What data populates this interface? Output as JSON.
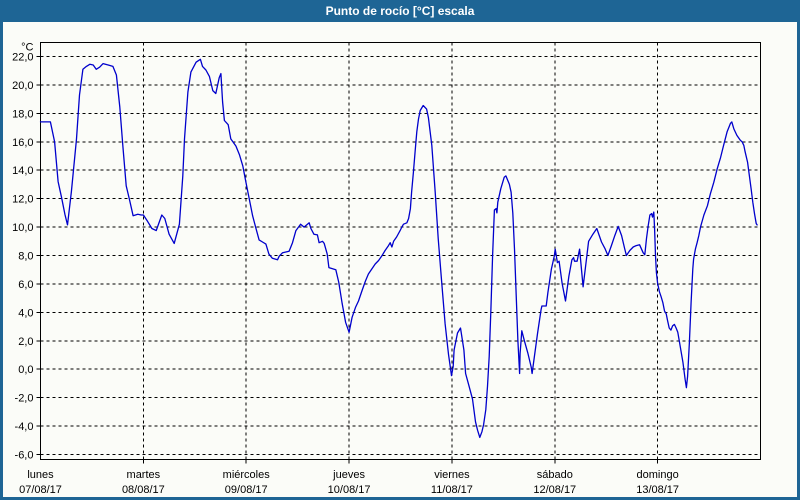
{
  "window": {
    "title": "Punto de rocío [°C] escala"
  },
  "colors": {
    "frame_blue": "#1e6595",
    "title_text": "#ffffff",
    "panel_bg": "#fbfcf8",
    "plot_bg": "#fbfcf8",
    "grid": "#000000",
    "axis_text": "#000000",
    "line": "#0000cc"
  },
  "chart_data": {
    "type": "line",
    "title": "Punto de rocío [°C] escala",
    "ylabel": "°C",
    "unit_label": "°C",
    "ylim": [
      -6,
      22
    ],
    "ytick_step": 2,
    "ytick_labels": [
      "22,0",
      "20,0",
      "18,0",
      "16,0",
      "14,0",
      "12,0",
      "10,0",
      "8,0",
      "6,0",
      "4,0",
      "2,0",
      "0,0",
      "-2,0",
      "-4,0",
      "-6,0"
    ],
    "grid": "dashed",
    "legend": "none",
    "x_mode": "hours_over_week",
    "hours_total": 168,
    "hours_per_day": 24,
    "days": [
      {
        "name": "lunes",
        "date": "07/08/17"
      },
      {
        "name": "martes",
        "date": "08/08/17"
      },
      {
        "name": "miércoles",
        "date": "09/08/17"
      },
      {
        "name": "jueves",
        "date": "10/08/17"
      },
      {
        "name": "viernes",
        "date": "11/08/17"
      },
      {
        "name": "sábado",
        "date": "12/08/17"
      },
      {
        "name": "domingo",
        "date": "13/08/17"
      }
    ],
    "series": [
      {
        "name": "Punto de rocío",
        "color": "#0000cc",
        "points": [
          [
            0,
            17.4
          ],
          [
            2.3,
            17.4
          ],
          [
            3.3,
            16.0
          ],
          [
            4.1,
            13.2
          ],
          [
            4.9,
            12.1
          ],
          [
            5.7,
            10.9
          ],
          [
            6.3,
            10.15
          ],
          [
            7.2,
            12.5
          ],
          [
            8.4,
            16.2
          ],
          [
            9.1,
            19.3
          ],
          [
            9.9,
            21.1
          ],
          [
            10.7,
            21.3
          ],
          [
            11.5,
            21.45
          ],
          [
            12.3,
            21.4
          ],
          [
            13.0,
            21.1
          ],
          [
            13.8,
            21.25
          ],
          [
            14.6,
            21.5
          ],
          [
            15.8,
            21.4
          ],
          [
            16.9,
            21.3
          ],
          [
            17.7,
            20.7
          ],
          [
            18.5,
            18.45
          ],
          [
            19.2,
            15.75
          ],
          [
            20.0,
            12.9
          ],
          [
            20.8,
            11.9
          ],
          [
            21.6,
            10.8
          ],
          [
            22.7,
            10.9
          ],
          [
            23.5,
            10.85
          ],
          [
            24.0,
            10.85
          ],
          [
            25.0,
            10.4
          ],
          [
            26.0,
            9.9
          ],
          [
            27.0,
            9.75
          ],
          [
            28.3,
            10.85
          ],
          [
            29.0,
            10.6
          ],
          [
            30.0,
            9.5
          ],
          [
            31.2,
            8.85
          ],
          [
            32.4,
            10.2
          ],
          [
            33.2,
            13.6
          ],
          [
            33.6,
            16.2
          ],
          [
            34.4,
            19.5
          ],
          [
            35.1,
            20.9
          ],
          [
            36.3,
            21.6
          ],
          [
            37.3,
            21.8
          ],
          [
            37.8,
            21.3
          ],
          [
            38.6,
            21.05
          ],
          [
            39.4,
            20.6
          ],
          [
            40.2,
            19.6
          ],
          [
            40.9,
            19.4
          ],
          [
            41.7,
            20.5
          ],
          [
            42.1,
            20.8
          ],
          [
            42.5,
            18.8
          ],
          [
            42.9,
            17.5
          ],
          [
            43.8,
            17.2
          ],
          [
            44.4,
            16.2
          ],
          [
            45.6,
            15.7
          ],
          [
            46.4,
            15.1
          ],
          [
            47.2,
            14.3
          ],
          [
            47.9,
            13.2
          ],
          [
            48.7,
            12.0
          ],
          [
            49.5,
            10.8
          ],
          [
            50.2,
            10.0
          ],
          [
            51.0,
            9.1
          ],
          [
            51.8,
            8.95
          ],
          [
            52.6,
            8.8
          ],
          [
            53.3,
            8.1
          ],
          [
            54.1,
            7.8
          ],
          [
            55.3,
            7.7
          ],
          [
            55.7,
            7.95
          ],
          [
            56.5,
            8.2
          ],
          [
            58.0,
            8.3
          ],
          [
            58.8,
            8.9
          ],
          [
            59.6,
            9.75
          ],
          [
            60.7,
            10.2
          ],
          [
            61.5,
            10.0
          ],
          [
            62.7,
            10.3
          ],
          [
            63.1,
            9.9
          ],
          [
            63.8,
            9.5
          ],
          [
            64.6,
            9.45
          ],
          [
            65.0,
            8.9
          ],
          [
            65.8,
            9.0
          ],
          [
            66.2,
            8.85
          ],
          [
            66.9,
            8.1
          ],
          [
            67.3,
            7.15
          ],
          [
            68.9,
            7.0
          ],
          [
            69.6,
            6.1
          ],
          [
            70.4,
            4.6
          ],
          [
            71.2,
            3.3
          ],
          [
            72.0,
            2.6
          ],
          [
            72.7,
            3.65
          ],
          [
            73.5,
            4.35
          ],
          [
            74.2,
            4.8
          ],
          [
            75.0,
            5.5
          ],
          [
            75.8,
            6.2
          ],
          [
            76.5,
            6.7
          ],
          [
            77.3,
            7.05
          ],
          [
            78.1,
            7.4
          ],
          [
            78.9,
            7.65
          ],
          [
            79.7,
            8.0
          ],
          [
            80.4,
            8.35
          ],
          [
            81.2,
            8.7
          ],
          [
            81.6,
            8.9
          ],
          [
            82.0,
            8.6
          ],
          [
            82.4,
            9.0
          ],
          [
            83.1,
            9.3
          ],
          [
            83.9,
            9.75
          ],
          [
            84.3,
            10.0
          ],
          [
            84.7,
            10.2
          ],
          [
            85.5,
            10.3
          ],
          [
            85.9,
            10.6
          ],
          [
            86.3,
            11.3
          ],
          [
            86.6,
            12.45
          ],
          [
            87.0,
            13.85
          ],
          [
            87.4,
            15.3
          ],
          [
            87.8,
            16.7
          ],
          [
            88.2,
            17.6
          ],
          [
            88.6,
            18.2
          ],
          [
            89.3,
            18.55
          ],
          [
            90.1,
            18.3
          ],
          [
            90.5,
            17.7
          ],
          [
            91.3,
            15.75
          ],
          [
            92.1,
            12.45
          ],
          [
            92.8,
            9.2
          ],
          [
            93.6,
            6.2
          ],
          [
            94.4,
            3.2
          ],
          [
            95.2,
            1.05
          ],
          [
            95.9,
            -0.45
          ],
          [
            96.3,
            0.2
          ],
          [
            96.5,
            1.35
          ],
          [
            97.3,
            2.55
          ],
          [
            98.0,
            2.9
          ],
          [
            98.8,
            1.35
          ],
          [
            99.2,
            -0.3
          ],
          [
            100.0,
            -1.2
          ],
          [
            100.8,
            -2.1
          ],
          [
            101.5,
            -3.7
          ],
          [
            102.0,
            -4.3
          ],
          [
            102.5,
            -4.8
          ],
          [
            103.0,
            -4.4
          ],
          [
            103.4,
            -3.9
          ],
          [
            103.9,
            -2.85
          ],
          [
            104.3,
            -1.2
          ],
          [
            104.7,
            0.9
          ],
          [
            105.1,
            4.2
          ],
          [
            105.5,
            8.0
          ],
          [
            105.9,
            11.2
          ],
          [
            106.3,
            11.3
          ],
          [
            106.5,
            11.0
          ],
          [
            106.7,
            11.75
          ],
          [
            107.4,
            12.7
          ],
          [
            108.2,
            13.5
          ],
          [
            108.6,
            13.6
          ],
          [
            109.4,
            13.0
          ],
          [
            109.8,
            12.45
          ],
          [
            110.2,
            11.0
          ],
          [
            110.6,
            8.45
          ],
          [
            111.0,
            5.2
          ],
          [
            111.4,
            2.0
          ],
          [
            111.8,
            -0.3
          ],
          [
            111.9,
            1.1
          ],
          [
            112.3,
            2.7
          ],
          [
            112.9,
            2.0
          ],
          [
            113.7,
            1.15
          ],
          [
            114.5,
            0.15
          ],
          [
            114.7,
            -0.3
          ],
          [
            115.3,
            1.0
          ],
          [
            116.0,
            2.55
          ],
          [
            116.8,
            4.2
          ],
          [
            117.0,
            4.45
          ],
          [
            118.0,
            4.45
          ],
          [
            118.4,
            5.4
          ],
          [
            119.2,
            7.05
          ],
          [
            119.9,
            8.0
          ],
          [
            120.1,
            8.45
          ],
          [
            120.6,
            7.5
          ],
          [
            121.0,
            7.6
          ],
          [
            121.7,
            6.05
          ],
          [
            122.5,
            4.8
          ],
          [
            123.3,
            6.55
          ],
          [
            124.0,
            7.7
          ],
          [
            124.4,
            7.85
          ],
          [
            124.6,
            7.6
          ],
          [
            125.2,
            7.6
          ],
          [
            125.8,
            8.45
          ],
          [
            126.6,
            5.8
          ],
          [
            127.2,
            7.25
          ],
          [
            127.9,
            9.0
          ],
          [
            128.9,
            9.5
          ],
          [
            129.8,
            9.9
          ],
          [
            130.9,
            8.95
          ],
          [
            131.7,
            8.5
          ],
          [
            132.4,
            8.0
          ],
          [
            133.2,
            8.7
          ],
          [
            134.0,
            9.4
          ],
          [
            134.8,
            10.05
          ],
          [
            135.6,
            9.4
          ],
          [
            136.3,
            8.5
          ],
          [
            136.7,
            8.0
          ],
          [
            137.5,
            8.35
          ],
          [
            138.3,
            8.6
          ],
          [
            139.0,
            8.7
          ],
          [
            139.8,
            8.75
          ],
          [
            140.6,
            8.2
          ],
          [
            141.0,
            8.05
          ],
          [
            141.4,
            9.2
          ],
          [
            141.8,
            10.1
          ],
          [
            142.2,
            10.85
          ],
          [
            142.6,
            10.95
          ],
          [
            142.8,
            10.7
          ],
          [
            143.1,
            11.05
          ],
          [
            143.3,
            9.85
          ],
          [
            143.5,
            8.0
          ],
          [
            143.7,
            6.8
          ],
          [
            144.0,
            6.05
          ],
          [
            144.4,
            5.45
          ],
          [
            144.8,
            5.1
          ],
          [
            145.2,
            4.7
          ],
          [
            145.6,
            4.1
          ],
          [
            146.0,
            3.9
          ],
          [
            146.3,
            3.45
          ],
          [
            146.7,
            2.9
          ],
          [
            147.1,
            2.75
          ],
          [
            147.5,
            3.05
          ],
          [
            147.9,
            3.15
          ],
          [
            148.3,
            2.9
          ],
          [
            148.7,
            2.6
          ],
          [
            149.1,
            1.9
          ],
          [
            149.5,
            1.2
          ],
          [
            149.9,
            0.5
          ],
          [
            150.4,
            -0.7
          ],
          [
            150.7,
            -1.3
          ],
          [
            151.0,
            -0.5
          ],
          [
            151.4,
            1.9
          ],
          [
            151.8,
            4.7
          ],
          [
            152.2,
            7.05
          ],
          [
            152.4,
            7.75
          ],
          [
            152.8,
            8.45
          ],
          [
            153.2,
            8.9
          ],
          [
            153.6,
            9.4
          ],
          [
            154.0,
            10.0
          ],
          [
            154.8,
            10.85
          ],
          [
            155.6,
            11.5
          ],
          [
            156.3,
            12.35
          ],
          [
            157.1,
            13.15
          ],
          [
            157.9,
            14.1
          ],
          [
            158.7,
            14.9
          ],
          [
            159.4,
            15.75
          ],
          [
            160.2,
            16.7
          ],
          [
            161.0,
            17.3
          ],
          [
            161.3,
            17.4
          ],
          [
            161.8,
            16.9
          ],
          [
            162.5,
            16.45
          ],
          [
            163.3,
            16.1
          ],
          [
            163.7,
            16.0
          ],
          [
            164.1,
            15.75
          ],
          [
            164.4,
            15.3
          ],
          [
            165.0,
            14.55
          ],
          [
            165.4,
            13.6
          ],
          [
            165.8,
            12.7
          ],
          [
            166.2,
            11.75
          ],
          [
            166.6,
            10.95
          ],
          [
            167.0,
            10.25
          ],
          [
            167.2,
            10.15
          ]
        ]
      }
    ]
  }
}
